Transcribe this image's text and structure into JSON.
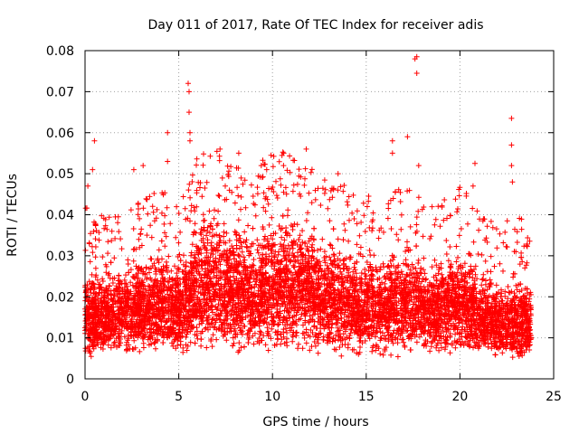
{
  "chart_data": {
    "type": "scatter",
    "title": "Day 011 of 2017, Rate Of TEC Index for receiver adis",
    "xlabel": "GPS time / hours",
    "ylabel": "ROTI / TECUs",
    "xlim": [
      0,
      25
    ],
    "ylim": [
      0,
      0.08
    ],
    "x_ticks": [
      0,
      5,
      10,
      15,
      20,
      25
    ],
    "x_tick_labels": [
      "0",
      "5",
      "10",
      "15",
      "20",
      "25"
    ],
    "y_ticks": [
      0,
      0.01,
      0.02,
      0.03,
      0.04,
      0.05,
      0.06,
      0.07,
      0.08
    ],
    "y_tick_labels": [
      "0",
      "0.01",
      "0.02",
      "0.03",
      "0.04",
      "0.05",
      "0.06",
      "0.07",
      "0.08"
    ],
    "grid": true,
    "marker": "+",
    "color": "#ff0000",
    "series": [
      {
        "name": "ROTI",
        "x_range_hours": [
          0,
          23.8
        ],
        "typical_band": [
          0.005,
          0.03
        ],
        "notable_points": [
          {
            "x": 0.5,
            "y": 0.058
          },
          {
            "x": 0.4,
            "y": 0.051
          },
          {
            "x": 0.15,
            "y": 0.047
          },
          {
            "x": 2.6,
            "y": 0.051
          },
          {
            "x": 3.1,
            "y": 0.052
          },
          {
            "x": 4.4,
            "y": 0.06
          },
          {
            "x": 4.4,
            "y": 0.053
          },
          {
            "x": 5.5,
            "y": 0.072
          },
          {
            "x": 5.55,
            "y": 0.07
          },
          {
            "x": 5.55,
            "y": 0.065
          },
          {
            "x": 5.6,
            "y": 0.06
          },
          {
            "x": 5.6,
            "y": 0.058
          },
          {
            "x": 7.2,
            "y": 0.056
          },
          {
            "x": 8.2,
            "y": 0.055
          },
          {
            "x": 9.4,
            "y": 0.052
          },
          {
            "x": 10.6,
            "y": 0.055
          },
          {
            "x": 11.8,
            "y": 0.056
          },
          {
            "x": 13.5,
            "y": 0.05
          },
          {
            "x": 16.4,
            "y": 0.058
          },
          {
            "x": 16.4,
            "y": 0.055
          },
          {
            "x": 17.2,
            "y": 0.059
          },
          {
            "x": 17.6,
            "y": 0.078
          },
          {
            "x": 17.7,
            "y": 0.0785
          },
          {
            "x": 17.7,
            "y": 0.0745
          },
          {
            "x": 17.8,
            "y": 0.052
          },
          {
            "x": 20.8,
            "y": 0.0525
          },
          {
            "x": 20.7,
            "y": 0.047
          },
          {
            "x": 22.75,
            "y": 0.0635
          },
          {
            "x": 22.75,
            "y": 0.057
          },
          {
            "x": 22.75,
            "y": 0.052
          },
          {
            "x": 22.8,
            "y": 0.048
          }
        ],
        "hourly_envelope": [
          {
            "x": 0,
            "lo": 0.004,
            "hi": 0.03
          },
          {
            "x": 1,
            "lo": 0.005,
            "hi": 0.028
          },
          {
            "x": 2,
            "lo": 0.005,
            "hi": 0.03
          },
          {
            "x": 3,
            "lo": 0.005,
            "hi": 0.032
          },
          {
            "x": 4,
            "lo": 0.005,
            "hi": 0.035
          },
          {
            "x": 5,
            "lo": 0.004,
            "hi": 0.033
          },
          {
            "x": 6,
            "lo": 0.006,
            "hi": 0.042
          },
          {
            "x": 7,
            "lo": 0.006,
            "hi": 0.045
          },
          {
            "x": 8,
            "lo": 0.006,
            "hi": 0.04
          },
          {
            "x": 9,
            "lo": 0.006,
            "hi": 0.04
          },
          {
            "x": 10,
            "lo": 0.006,
            "hi": 0.043
          },
          {
            "x": 11,
            "lo": 0.006,
            "hi": 0.045
          },
          {
            "x": 12,
            "lo": 0.005,
            "hi": 0.042
          },
          {
            "x": 13,
            "lo": 0.005,
            "hi": 0.036
          },
          {
            "x": 14,
            "lo": 0.005,
            "hi": 0.036
          },
          {
            "x": 15,
            "lo": 0.005,
            "hi": 0.034
          },
          {
            "x": 16,
            "lo": 0.005,
            "hi": 0.034
          },
          {
            "x": 17,
            "lo": 0.005,
            "hi": 0.035
          },
          {
            "x": 18,
            "lo": 0.005,
            "hi": 0.032
          },
          {
            "x": 19,
            "lo": 0.005,
            "hi": 0.033
          },
          {
            "x": 20,
            "lo": 0.005,
            "hi": 0.035
          },
          {
            "x": 21,
            "lo": 0.005,
            "hi": 0.03
          },
          {
            "x": 22,
            "lo": 0.005,
            "hi": 0.025
          },
          {
            "x": 23,
            "lo": 0.003,
            "hi": 0.028
          },
          {
            "x": 23.8,
            "lo": 0.004,
            "hi": 0.025
          }
        ]
      }
    ]
  }
}
